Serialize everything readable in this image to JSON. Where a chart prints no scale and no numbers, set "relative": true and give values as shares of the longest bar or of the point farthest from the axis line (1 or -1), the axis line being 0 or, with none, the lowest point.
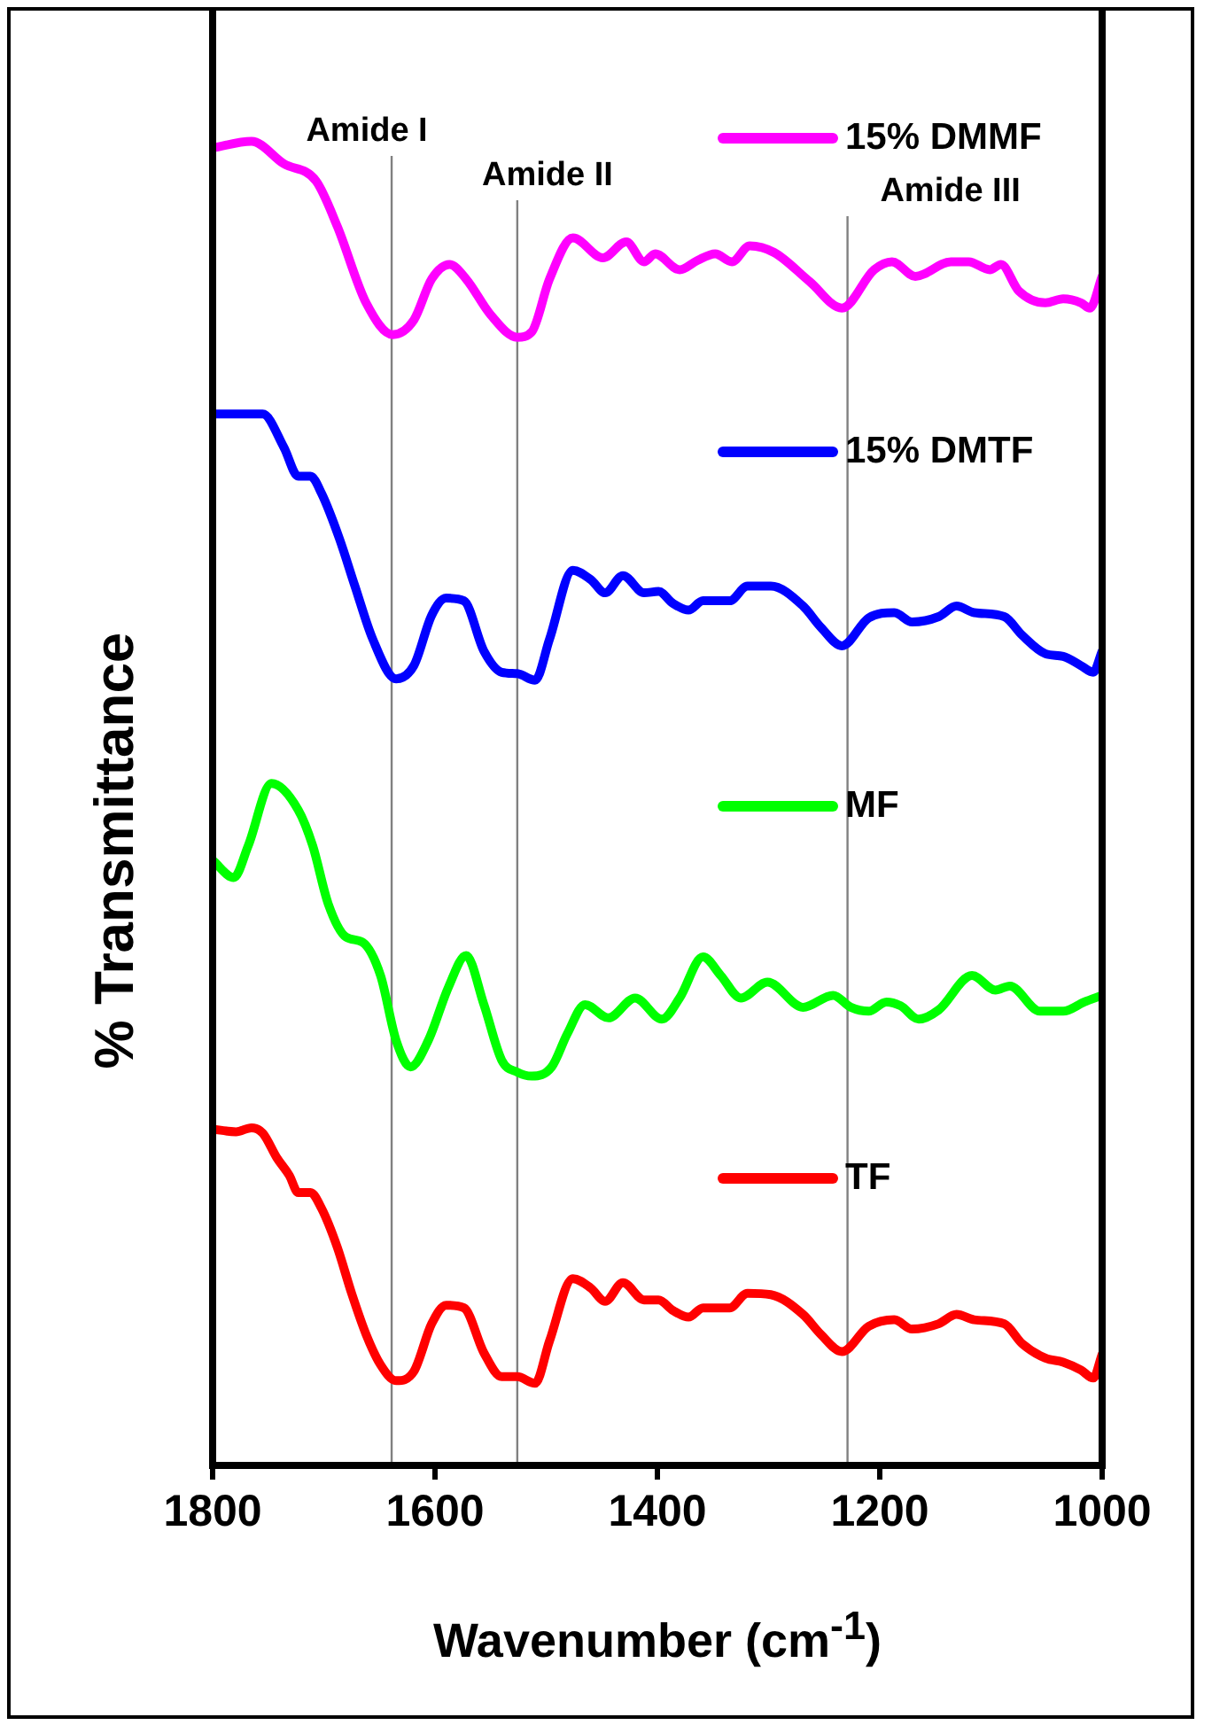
{
  "chart_data": {
    "type": "line",
    "relative": true,
    "xlabel": "Wavenumber (cm$^{-1}$)",
    "ylabel": "% Transmittance",
    "xlim": [
      1800,
      1000
    ],
    "xticks": [
      1800,
      1600,
      1400,
      1200,
      1000
    ],
    "legend": "right",
    "marker": "none",
    "line_style": "solid",
    "ref_lines": [
      {
        "axis": "x",
        "value": 1639,
        "label": "Amide I",
        "color": "#808080"
      },
      {
        "axis": "x",
        "value": 1526,
        "label": "Amide II",
        "color": "#808080"
      },
      {
        "axis": "x",
        "value": 1229,
        "label": "Amide III",
        "color": "#808080"
      }
    ],
    "series": [
      {
        "name": "15% DMMF",
        "color": "#ff00ff",
        "x": [
          1800,
          1765,
          1736,
          1707,
          1688,
          1662,
          1638,
          1619,
          1603,
          1587,
          1572,
          1550,
          1526,
          1513,
          1497,
          1476,
          1449,
          1428,
          1412,
          1402,
          1380,
          1364,
          1348,
          1333,
          1317,
          1295,
          1263,
          1234,
          1205,
          1189,
          1168,
          1136,
          1120,
          1101,
          1091,
          1075,
          1051,
          1035,
          1019,
          1011,
          1000
        ],
        "values": [
          0.995,
          1,
          0.983,
          0.97,
          0.936,
          0.878,
          0.854,
          0.865,
          0.896,
          0.907,
          0.896,
          0.869,
          0.852,
          0.856,
          0.896,
          0.927,
          0.912,
          0.924,
          0.909,
          0.915,
          0.903,
          0.91,
          0.915,
          0.909,
          0.921,
          0.916,
          0.894,
          0.874,
          0.903,
          0.909,
          0.898,
          0.909,
          0.909,
          0.903,
          0.907,
          0.887,
          0.878,
          0.881,
          0.878,
          0.874,
          0.898
        ]
      },
      {
        "name": "15% DMTF",
        "color": "#0000ff",
        "x": [
          1800,
          1755,
          1736,
          1723,
          1712,
          1702,
          1686,
          1672,
          1656,
          1635,
          1619,
          1603,
          1590,
          1574,
          1556,
          1540,
          1526,
          1510,
          1497,
          1476,
          1460,
          1447,
          1431,
          1412,
          1399,
          1386,
          1372,
          1359,
          1335,
          1319,
          1298,
          1269,
          1253,
          1234,
          1210,
          1187,
          1171,
          1147,
          1131,
          1115,
          1088,
          1072,
          1051,
          1035,
          1019,
          1008,
          1000
        ],
        "values": [
          0.794,
          0.794,
          0.769,
          0.747,
          0.747,
          0.734,
          0.7,
          0.664,
          0.624,
          0.594,
          0.604,
          0.642,
          0.655,
          0.653,
          0.615,
          0.599,
          0.598,
          0.593,
          0.624,
          0.676,
          0.669,
          0.659,
          0.672,
          0.659,
          0.66,
          0.651,
          0.646,
          0.653,
          0.653,
          0.664,
          0.664,
          0.649,
          0.633,
          0.619,
          0.64,
          0.644,
          0.637,
          0.641,
          0.649,
          0.644,
          0.641,
          0.627,
          0.613,
          0.611,
          0.604,
          0.599,
          0.615
        ]
      },
      {
        "name": "MF",
        "color": "#00ff00",
        "x": [
          1800,
          1781,
          1768,
          1747,
          1723,
          1710,
          1696,
          1680,
          1665,
          1649,
          1635,
          1622,
          1606,
          1588,
          1572,
          1556,
          1540,
          1526,
          1513,
          1495,
          1481,
          1465,
          1444,
          1420,
          1396,
          1380,
          1359,
          1343,
          1325,
          1301,
          1269,
          1242,
          1226,
          1210,
          1194,
          1181,
          1165,
          1147,
          1117,
          1096,
          1083,
          1056,
          1035,
          1016,
          1000
        ],
        "values": [
          0.457,
          0.444,
          0.468,
          0.515,
          0.495,
          0.468,
          0.424,
          0.399,
          0.395,
          0.37,
          0.321,
          0.301,
          0.321,
          0.361,
          0.385,
          0.348,
          0.306,
          0.297,
          0.294,
          0.301,
          0.326,
          0.348,
          0.338,
          0.353,
          0.337,
          0.353,
          0.384,
          0.37,
          0.353,
          0.365,
          0.346,
          0.355,
          0.346,
          0.343,
          0.35,
          0.347,
          0.337,
          0.344,
          0.37,
          0.359,
          0.362,
          0.343,
          0.343,
          0.35,
          0.355
        ]
      },
      {
        "name": "TF",
        "color": "#ff0000",
        "x": [
          1800,
          1779,
          1765,
          1755,
          1742,
          1731,
          1723,
          1712,
          1702,
          1688,
          1675,
          1662,
          1649,
          1635,
          1619,
          1603,
          1590,
          1574,
          1556,
          1540,
          1526,
          1510,
          1497,
          1476,
          1460,
          1447,
          1431,
          1412,
          1399,
          1386,
          1372,
          1359,
          1335,
          1319,
          1298,
          1269,
          1253,
          1234,
          1210,
          1187,
          1171,
          1147,
          1131,
          1115,
          1088,
          1072,
          1051,
          1035,
          1019,
          1008,
          1000
        ],
        "values": [
          0.254,
          0.252,
          0.255,
          0.251,
          0.232,
          0.219,
          0.206,
          0.206,
          0.194,
          0.165,
          0.13,
          0.099,
          0.076,
          0.064,
          0.071,
          0.107,
          0.121,
          0.119,
          0.085,
          0.067,
          0.067,
          0.062,
          0.094,
          0.141,
          0.134,
          0.124,
          0.138,
          0.125,
          0.125,
          0.117,
          0.112,
          0.119,
          0.119,
          0.13,
          0.129,
          0.114,
          0.099,
          0.086,
          0.105,
          0.11,
          0.103,
          0.107,
          0.114,
          0.11,
          0.107,
          0.092,
          0.081,
          0.078,
          0.072,
          0.066,
          0.084
        ]
      }
    ]
  }
}
